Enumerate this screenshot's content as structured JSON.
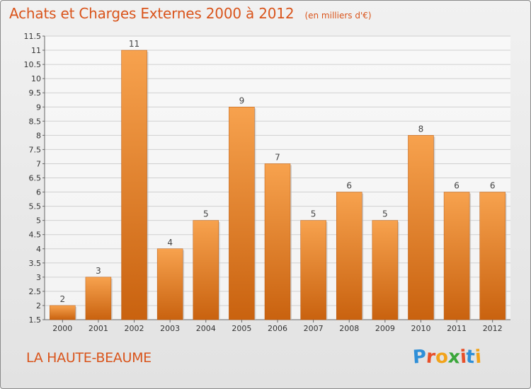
{
  "header": {
    "title": "Achats et Charges Externes 2000 à 2012",
    "subtitle": "(en milliers d'€)"
  },
  "footer": {
    "place": "LA HAUTE-BEAUME",
    "logo_letters": [
      "P",
      "r",
      "o",
      "x",
      "i",
      "t",
      "i"
    ],
    "logo_colors": [
      "#2f8fd8",
      "#e8502a",
      "#f2a31a",
      "#3aa63a",
      "#e8502a",
      "#2f8fd8",
      "#f2a31a"
    ]
  },
  "colors": {
    "bar_top": "#f7a24e",
    "bar_bottom": "#c9620f",
    "title": "#d9541b"
  },
  "chart_data": {
    "type": "bar",
    "categories": [
      "2000",
      "2001",
      "2002",
      "2003",
      "2004",
      "2005",
      "2006",
      "2007",
      "2008",
      "2009",
      "2010",
      "2011",
      "2012"
    ],
    "values": [
      2,
      3,
      11,
      4,
      5,
      9,
      7,
      5,
      6,
      5,
      8,
      6,
      6
    ],
    "value_labels": [
      "2",
      "3",
      "11",
      "4",
      "5",
      "9",
      "7",
      "5",
      "6",
      "5",
      "8",
      "6",
      "6"
    ],
    "title": "Achats et Charges Externes 2000 à 2012",
    "subtitle": "(en milliers d'€)",
    "xlabel": "",
    "ylabel": "",
    "ylim": [
      1.5,
      11.5
    ],
    "yticks": [
      "1.5",
      "2",
      "2.5",
      "3",
      "3.5",
      "4",
      "4.5",
      "5",
      "5.5",
      "6",
      "6.5",
      "7",
      "7.5",
      "8",
      "8.5",
      "9",
      "9.5",
      "10",
      "10.5",
      "11",
      "11.5"
    ],
    "grid": true
  }
}
